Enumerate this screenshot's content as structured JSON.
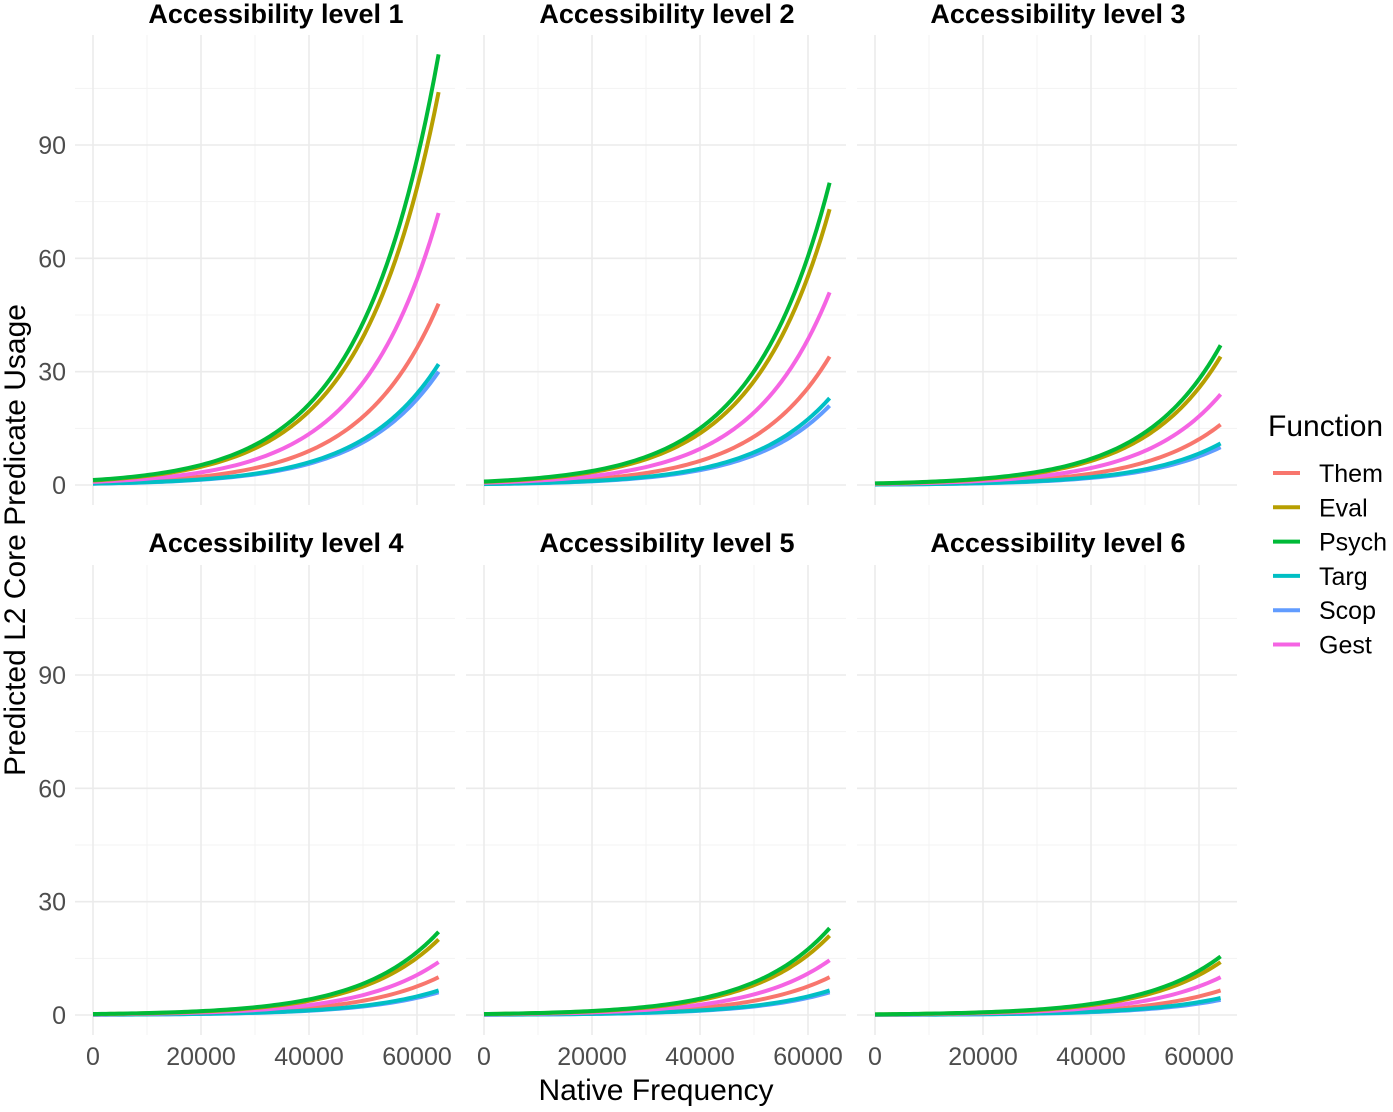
{
  "chart_data": {
    "type": "line",
    "xlabel": "Native Frequency",
    "ylabel": "Predicted L2 Core Predicate Usage",
    "xlim": [
      0,
      64000
    ],
    "ylim": [
      0,
      115
    ],
    "x_ticks": [
      0,
      20000,
      40000,
      60000
    ],
    "y_ticks": [
      0,
      30,
      60,
      90
    ],
    "grid": true,
    "legend": {
      "title": "Function",
      "placement": "right"
    },
    "series": [
      {
        "name": "Them",
        "color": "#F8766D"
      },
      {
        "name": "Eval",
        "color": "#B79F00"
      },
      {
        "name": "Psych",
        "color": "#00BA38"
      },
      {
        "name": "Targ",
        "color": "#00BFC4"
      },
      {
        "name": "Scop",
        "color": "#619CFF"
      },
      {
        "name": "Gest",
        "color": "#F564E3"
      }
    ],
    "panels": [
      {
        "title": "Accessibility level 1",
        "end_values": {
          "Them": 48,
          "Eval": 104,
          "Psych": 114,
          "Targ": 32,
          "Scop": 30,
          "Gest": 72
        }
      },
      {
        "title": "Accessibility level 2",
        "end_values": {
          "Them": 34,
          "Eval": 73,
          "Psych": 80,
          "Targ": 23,
          "Scop": 21,
          "Gest": 51
        }
      },
      {
        "title": "Accessibility level 3",
        "end_values": {
          "Them": 16,
          "Eval": 34,
          "Psych": 37,
          "Targ": 11,
          "Scop": 10,
          "Gest": 24
        }
      },
      {
        "title": "Accessibility level 4",
        "end_values": {
          "Them": 10,
          "Eval": 20,
          "Psych": 22,
          "Targ": 6.5,
          "Scop": 6,
          "Gest": 14
        }
      },
      {
        "title": "Accessibility level 5",
        "end_values": {
          "Them": 10,
          "Eval": 21,
          "Psych": 23,
          "Targ": 6.5,
          "Scop": 6,
          "Gest": 14.5
        }
      },
      {
        "title": "Accessibility level 6",
        "end_values": {
          "Them": 6.5,
          "Eval": 14,
          "Psych": 15.5,
          "Targ": 4.5,
          "Scop": 4,
          "Gest": 10
        }
      }
    ],
    "curve": "exponential",
    "start_fraction_of_end": 0.0115
  }
}
